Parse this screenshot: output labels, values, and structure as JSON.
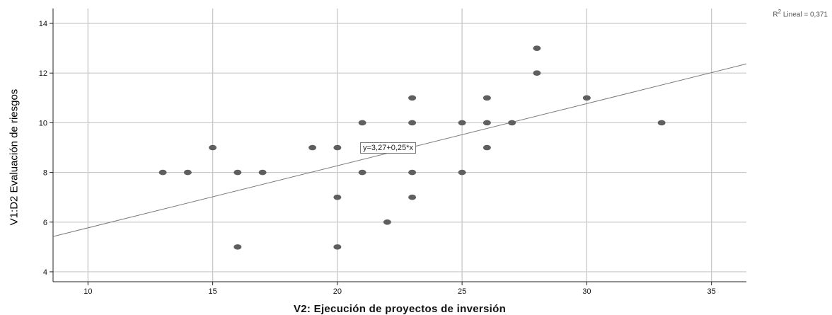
{
  "chart_data": {
    "type": "scatter",
    "xlabel": "V2: Ejecución de proyectos de inversión",
    "ylabel": "V1:D2 Evaluación de riesgos",
    "xlim": [
      8.6,
      36.4
    ],
    "ylim": [
      3.6,
      14.6
    ],
    "xticks": [
      10,
      15,
      20,
      25,
      30,
      35
    ],
    "yticks": [
      4,
      6,
      8,
      10,
      12,
      14
    ],
    "grid": true,
    "points": [
      {
        "x": 13,
        "y": 8
      },
      {
        "x": 14,
        "y": 8
      },
      {
        "x": 15,
        "y": 9
      },
      {
        "x": 16,
        "y": 8
      },
      {
        "x": 16,
        "y": 5
      },
      {
        "x": 17,
        "y": 8
      },
      {
        "x": 19,
        "y": 9
      },
      {
        "x": 20,
        "y": 9
      },
      {
        "x": 20,
        "y": 7
      },
      {
        "x": 20,
        "y": 5
      },
      {
        "x": 21,
        "y": 10
      },
      {
        "x": 21,
        "y": 8
      },
      {
        "x": 22,
        "y": 6
      },
      {
        "x": 23,
        "y": 11
      },
      {
        "x": 23,
        "y": 10
      },
      {
        "x": 23,
        "y": 8
      },
      {
        "x": 23,
        "y": 7
      },
      {
        "x": 25,
        "y": 10
      },
      {
        "x": 25,
        "y": 8
      },
      {
        "x": 26,
        "y": 11
      },
      {
        "x": 26,
        "y": 10
      },
      {
        "x": 26,
        "y": 9
      },
      {
        "x": 27,
        "y": 10
      },
      {
        "x": 28,
        "y": 13
      },
      {
        "x": 28,
        "y": 12
      },
      {
        "x": 30,
        "y": 11
      },
      {
        "x": 33,
        "y": 10
      }
    ],
    "fit_line": {
      "intercept": 3.27,
      "slope": 0.25,
      "equation_label": "y=3,27+0,25*x"
    },
    "r2_label": {
      "prefix": "R",
      "sup": "2",
      "text": " Lineal = 0,371"
    },
    "colors": {
      "points": "#5f5f5f",
      "grid": "#c8c8c8",
      "fit": "#7a7a7a",
      "axis": "#222222"
    }
  }
}
